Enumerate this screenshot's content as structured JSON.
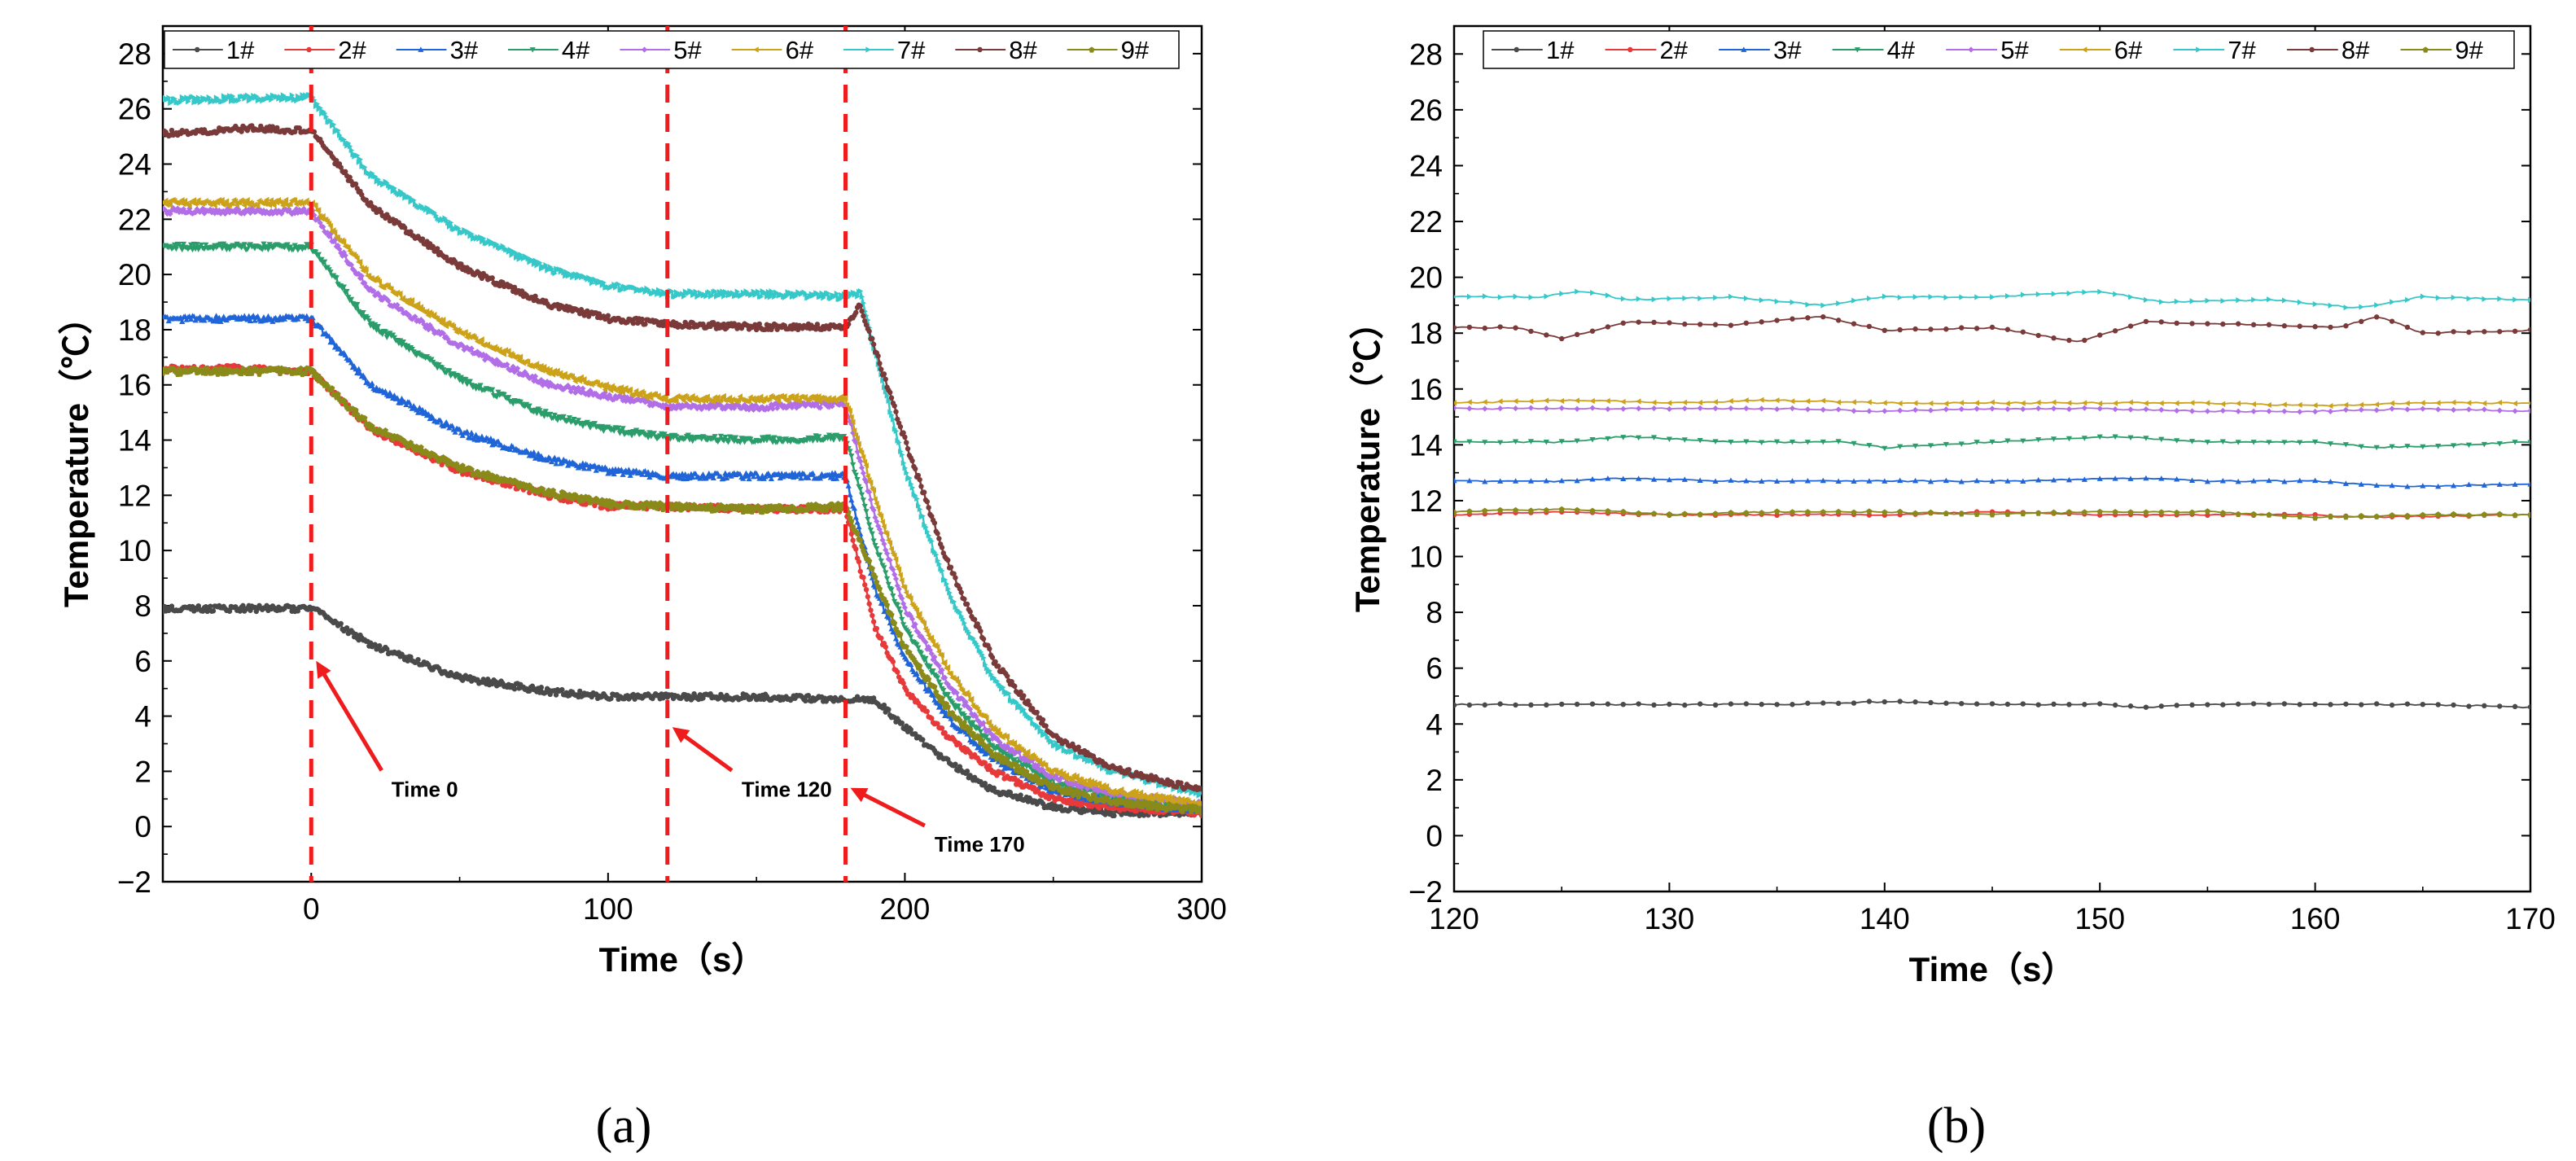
{
  "figure": {
    "panel_labels": [
      "(a)",
      "(b)"
    ]
  },
  "colors": {
    "1#": "#4a4a4a",
    "2#": "#e8393a",
    "3#": "#2065d8",
    "4#": "#2a9d6a",
    "5#": "#b16ee6",
    "6#": "#cca21a",
    "7#": "#36c8c8",
    "8#": "#7a3a3a",
    "9#": "#8a8a1a",
    "axis": "#000000",
    "marker_line": "#ee1c1c"
  },
  "chart_data": [
    {
      "type": "line",
      "panel": "(a)",
      "title": "",
      "xlabel": "Time（s）",
      "ylabel": "Temperature（℃）",
      "xlim": [
        -50,
        300
      ],
      "ylim": [
        -2,
        29
      ],
      "x_ticks": [
        0,
        100,
        200,
        300
      ],
      "y_ticks": [
        -2,
        0,
        2,
        4,
        6,
        8,
        10,
        12,
        14,
        16,
        18,
        20,
        22,
        24,
        26,
        28
      ],
      "legend": [
        "1#",
        "2#",
        "3#",
        "4#",
        "5#",
        "6#",
        "7#",
        "8#",
        "9#"
      ],
      "legend_position": "top",
      "vertical_markers": [
        0,
        120,
        180
      ],
      "annotations": [
        {
          "text": "Time 0",
          "x": 27,
          "y": 1.5,
          "arrow_to": [
            0,
            6
          ]
        },
        {
          "text": "Time 120",
          "x": 145,
          "y": 1.5,
          "arrow_to": [
            120,
            3.6
          ]
        },
        {
          "text": "Time 170",
          "x": 210,
          "y": -0.5,
          "arrow_to": [
            180,
            1.4
          ]
        }
      ],
      "series": [
        {
          "name": "1#",
          "x": [
            -50,
            -20,
            0,
            20,
            50,
            80,
            100,
            120,
            150,
            180,
            190,
            200,
            215,
            230,
            250,
            270,
            300
          ],
          "values": [
            7.9,
            7.9,
            7.9,
            6.6,
            5.4,
            4.9,
            4.7,
            4.7,
            4.7,
            4.6,
            4.6,
            3.6,
            2.3,
            1.3,
            0.7,
            0.5,
            0.5
          ]
        },
        {
          "name": "2#",
          "x": [
            -50,
            -20,
            0,
            20,
            50,
            80,
            100,
            120,
            150,
            180,
            190,
            200,
            215,
            230,
            250,
            270,
            300
          ],
          "values": [
            16.6,
            16.6,
            16.5,
            14.4,
            12.9,
            12.0,
            11.6,
            11.6,
            11.5,
            11.5,
            7.2,
            5.0,
            3.2,
            2.0,
            1.0,
            0.7,
            0.5
          ]
        },
        {
          "name": "3#",
          "x": [
            -50,
            -20,
            0,
            20,
            50,
            80,
            100,
            120,
            150,
            180,
            190,
            200,
            215,
            230,
            250,
            270,
            300
          ],
          "values": [
            18.4,
            18.4,
            18.4,
            16.0,
            14.3,
            13.3,
            12.9,
            12.7,
            12.7,
            12.7,
            8.6,
            6.1,
            3.9,
            2.4,
            1.3,
            0.9,
            0.6
          ]
        },
        {
          "name": "4#",
          "x": [
            -50,
            -20,
            0,
            20,
            50,
            80,
            100,
            120,
            150,
            180,
            190,
            200,
            215,
            230,
            250,
            270,
            300
          ],
          "values": [
            21.0,
            21.0,
            21.0,
            18.2,
            16.2,
            14.9,
            14.4,
            14.1,
            14.0,
            14.1,
            10.2,
            7.2,
            4.6,
            2.9,
            1.6,
            1.1,
            0.7
          ]
        },
        {
          "name": "5#",
          "x": [
            -50,
            -20,
            0,
            20,
            50,
            80,
            100,
            120,
            150,
            180,
            190,
            200,
            215,
            230,
            250,
            270,
            300
          ],
          "values": [
            22.3,
            22.3,
            22.3,
            19.4,
            17.4,
            16.0,
            15.6,
            15.2,
            15.2,
            15.3,
            11.2,
            7.9,
            5.1,
            3.2,
            1.8,
            1.2,
            0.8
          ]
        },
        {
          "name": "6#",
          "x": [
            -50,
            -20,
            0,
            20,
            50,
            80,
            100,
            120,
            150,
            180,
            190,
            200,
            215,
            230,
            250,
            270,
            300
          ],
          "values": [
            22.6,
            22.6,
            22.6,
            19.9,
            17.9,
            16.5,
            15.9,
            15.5,
            15.5,
            15.5,
            11.9,
            8.6,
            5.6,
            3.5,
            2.0,
            1.3,
            0.8
          ]
        },
        {
          "name": "7#",
          "x": [
            -50,
            -20,
            0,
            20,
            50,
            80,
            100,
            120,
            150,
            180,
            185,
            200,
            215,
            230,
            250,
            270,
            300
          ],
          "values": [
            26.3,
            26.4,
            26.4,
            23.6,
            21.6,
            20.2,
            19.6,
            19.3,
            19.3,
            19.2,
            19.3,
            13.0,
            8.4,
            5.3,
            3.0,
            2.0,
            1.2
          ]
        },
        {
          "name": "8#",
          "x": [
            -50,
            -20,
            0,
            20,
            50,
            80,
            100,
            120,
            150,
            180,
            185,
            200,
            215,
            230,
            250,
            270,
            300
          ],
          "values": [
            25.1,
            25.3,
            25.2,
            22.5,
            20.3,
            18.9,
            18.4,
            18.2,
            18.1,
            18.1,
            18.9,
            14.0,
            9.4,
            6.0,
            3.3,
            2.1,
            1.3
          ]
        },
        {
          "name": "9#",
          "x": [
            -50,
            -20,
            0,
            20,
            50,
            80,
            100,
            120,
            150,
            180,
            190,
            200,
            215,
            230,
            250,
            270,
            300
          ],
          "values": [
            16.5,
            16.5,
            16.5,
            14.5,
            13.0,
            12.1,
            11.7,
            11.6,
            11.5,
            11.6,
            9.0,
            6.5,
            4.2,
            2.6,
            1.4,
            0.9,
            0.6
          ]
        }
      ]
    },
    {
      "type": "line",
      "panel": "(b)",
      "title": "",
      "xlabel": "Time（s）",
      "ylabel": "Temperature（℃）",
      "xlim": [
        120,
        170
      ],
      "ylim": [
        -2,
        29
      ],
      "x_ticks": [
        120,
        130,
        140,
        150,
        160,
        170
      ],
      "y_ticks": [
        -2,
        0,
        2,
        4,
        6,
        8,
        10,
        12,
        14,
        16,
        18,
        20,
        22,
        24,
        26,
        28
      ],
      "legend": [
        "1#",
        "2#",
        "3#",
        "4#",
        "5#",
        "6#",
        "7#",
        "8#",
        "9#"
      ],
      "legend_position": "top",
      "series": [
        {
          "name": "1#",
          "x": [
            120,
            128,
            135,
            140,
            145,
            150,
            152,
            155,
            160,
            165,
            170
          ],
          "values": [
            4.7,
            4.7,
            4.7,
            4.8,
            4.7,
            4.7,
            4.6,
            4.7,
            4.7,
            4.7,
            4.6
          ]
        },
        {
          "name": "2#",
          "x": [
            120,
            125,
            130,
            135,
            140,
            145,
            150,
            155,
            160,
            162,
            170
          ],
          "values": [
            11.5,
            11.6,
            11.5,
            11.5,
            11.5,
            11.6,
            11.5,
            11.5,
            11.5,
            11.4,
            11.5
          ]
        },
        {
          "name": "3#",
          "x": [
            120,
            125,
            128,
            133,
            140,
            145,
            152,
            155,
            160,
            164,
            170
          ],
          "values": [
            12.7,
            12.7,
            12.8,
            12.7,
            12.7,
            12.7,
            12.8,
            12.7,
            12.7,
            12.5,
            12.6
          ]
        },
        {
          "name": "4#",
          "x": [
            120,
            125,
            128,
            133,
            138,
            140,
            145,
            151,
            155,
            160,
            163,
            170
          ],
          "values": [
            14.1,
            14.1,
            14.3,
            14.1,
            14.1,
            13.9,
            14.1,
            14.3,
            14.1,
            14.1,
            13.9,
            14.1
          ]
        },
        {
          "name": "5#",
          "x": [
            120,
            125,
            130,
            135,
            140,
            145,
            150,
            155,
            160,
            165,
            170
          ],
          "values": [
            15.3,
            15.3,
            15.3,
            15.3,
            15.2,
            15.3,
            15.3,
            15.2,
            15.2,
            15.3,
            15.2
          ]
        },
        {
          "name": "6#",
          "x": [
            120,
            126,
            130,
            135,
            140,
            145,
            150,
            155,
            160,
            165,
            170
          ],
          "values": [
            15.5,
            15.6,
            15.5,
            15.6,
            15.5,
            15.5,
            15.5,
            15.5,
            15.4,
            15.5,
            15.5
          ]
        },
        {
          "name": "7#",
          "x": [
            120,
            124,
            126,
            128,
            133,
            137,
            140,
            145,
            150,
            153,
            158,
            162,
            165,
            170
          ],
          "values": [
            19.3,
            19.3,
            19.5,
            19.2,
            19.3,
            19.0,
            19.3,
            19.3,
            19.5,
            19.1,
            19.2,
            18.9,
            19.3,
            19.2
          ]
        },
        {
          "name": "8#",
          "x": [
            120,
            123,
            125,
            128,
            133,
            137,
            140,
            145,
            149,
            152,
            157,
            161,
            163,
            165,
            170
          ],
          "values": [
            18.2,
            18.2,
            17.8,
            18.4,
            18.3,
            18.6,
            18.1,
            18.2,
            17.7,
            18.4,
            18.3,
            18.2,
            18.6,
            18.0,
            18.1
          ]
        },
        {
          "name": "9#",
          "x": [
            120,
            125,
            130,
            135,
            140,
            145,
            150,
            155,
            160,
            165,
            170
          ],
          "values": [
            11.6,
            11.7,
            11.5,
            11.6,
            11.6,
            11.5,
            11.6,
            11.6,
            11.4,
            11.5,
            11.5
          ]
        }
      ]
    }
  ]
}
